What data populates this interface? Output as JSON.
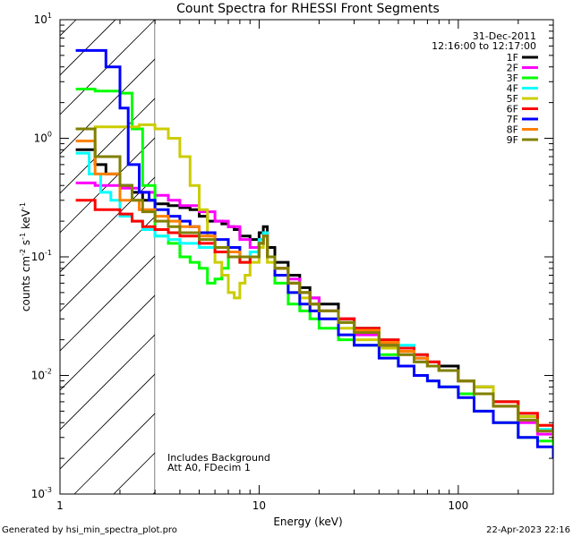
{
  "chart_data": {
    "type": "line",
    "title": "Count Spectra for RHESSI Front Segments",
    "xlabel": "Energy (keV)",
    "ylabel": "counts cm^-2 s^-1 keV^-1",
    "xscale": "log",
    "yscale": "log",
    "xlim": [
      1,
      300
    ],
    "ylim": [
      0.001,
      10
    ],
    "x_ticks": [
      1,
      10,
      100
    ],
    "x_tick_labels": [
      "1",
      "10",
      "100"
    ],
    "y_ticks": [
      0.001,
      0.01,
      0.1,
      1,
      10
    ],
    "y_tick_labels": [
      [
        "10",
        "-3"
      ],
      [
        "10",
        "-2"
      ],
      [
        "10",
        "-1"
      ],
      [
        "10",
        "0"
      ],
      [
        "10",
        "1"
      ]
    ],
    "shaded_region": {
      "x_min": 1,
      "x_max": 3,
      "pattern": "diagonal hatch"
    },
    "date": "31-Dec-2011",
    "time_range": "12:16:00 to 12:17:00",
    "annotations": [
      "Includes Background",
      "Att A0, FDecim 1"
    ],
    "series": [
      {
        "name": "1F",
        "color": "#000000",
        "x": [
          1.2,
          1.5,
          1.7,
          2,
          2.3,
          2.6,
          3,
          3.5,
          4,
          4.5,
          5,
          5.5,
          6,
          6.5,
          7,
          7.5,
          8,
          9,
          10,
          10.5,
          11,
          12,
          14,
          16,
          18,
          20,
          25,
          30,
          40,
          50,
          60,
          70,
          80,
          100,
          120,
          150,
          200,
          250,
          300
        ],
        "y": [
          0.8,
          0.6,
          0.5,
          0.4,
          0.35,
          0.3,
          0.28,
          0.27,
          0.26,
          0.25,
          0.22,
          0.2,
          0.2,
          0.19,
          0.18,
          0.17,
          0.15,
          0.14,
          0.16,
          0.18,
          0.12,
          0.09,
          0.07,
          0.055,
          0.045,
          0.04,
          0.03,
          0.025,
          0.018,
          0.016,
          0.014,
          0.013,
          0.012,
          0.009,
          0.008,
          0.006,
          0.0045,
          0.0035,
          0.003
        ]
      },
      {
        "name": "2F",
        "color": "#ff00ff",
        "x": [
          1.2,
          1.5,
          2,
          2.5,
          3,
          3.5,
          4,
          5,
          6,
          7,
          8,
          9,
          10,
          10.5,
          11,
          12,
          14,
          16,
          18,
          20,
          25,
          30,
          40,
          50,
          60,
          70,
          80,
          100,
          120,
          150,
          200,
          250,
          300
        ],
        "y": [
          0.42,
          0.4,
          0.38,
          0.35,
          0.33,
          0.3,
          0.27,
          0.24,
          0.2,
          0.18,
          0.14,
          0.12,
          0.14,
          0.16,
          0.1,
          0.08,
          0.065,
          0.05,
          0.045,
          0.035,
          0.03,
          0.022,
          0.018,
          0.015,
          0.013,
          0.012,
          0.011,
          0.009,
          0.007,
          0.0055,
          0.004,
          0.0032,
          0.0028
        ]
      },
      {
        "name": "3F",
        "color": "#00ff00",
        "x": [
          1.2,
          1.5,
          2,
          2.3,
          2.6,
          3,
          3.5,
          4,
          4.5,
          5,
          5.5,
          6,
          6.5,
          7,
          8,
          9,
          10,
          10.5,
          11,
          12,
          14,
          16,
          18,
          20,
          25,
          30,
          40,
          50,
          60,
          70,
          80,
          100,
          120,
          150,
          200,
          250,
          300
        ],
        "y": [
          2.6,
          2.5,
          2.4,
          1.2,
          0.4,
          0.15,
          0.13,
          0.1,
          0.09,
          0.08,
          0.06,
          0.065,
          0.08,
          0.1,
          0.09,
          0.1,
          0.13,
          0.15,
          0.1,
          0.06,
          0.04,
          0.035,
          0.03,
          0.025,
          0.02,
          0.018,
          0.015,
          0.012,
          0.01,
          0.009,
          0.008,
          0.007,
          0.005,
          0.004,
          0.003,
          0.0028,
          0.0025
        ]
      },
      {
        "name": "4F",
        "color": "#00ffff",
        "x": [
          1.2,
          1.4,
          1.6,
          1.8,
          2,
          2.3,
          2.6,
          3,
          3.5,
          4,
          5,
          6,
          7,
          8,
          9,
          10,
          10.5,
          11,
          12,
          14,
          16,
          18,
          20,
          25,
          30,
          40,
          50,
          60,
          70,
          80,
          100,
          120,
          150,
          200,
          250,
          300
        ],
        "y": [
          0.75,
          0.5,
          0.35,
          0.3,
          0.22,
          0.2,
          0.17,
          0.15,
          0.14,
          0.13,
          0.12,
          0.11,
          0.1,
          0.1,
          0.11,
          0.14,
          0.16,
          0.1,
          0.08,
          0.06,
          0.05,
          0.04,
          0.035,
          0.028,
          0.025,
          0.02,
          0.018,
          0.015,
          0.012,
          0.011,
          0.009,
          0.007,
          0.006,
          0.0045,
          0.0035,
          0.003
        ]
      },
      {
        "name": "5F",
        "color": "#cccc00",
        "x": [
          1.2,
          1.5,
          2,
          2.5,
          3,
          3.5,
          4,
          4.5,
          5,
          5.5,
          6,
          6.5,
          7,
          7.5,
          8,
          8.5,
          9,
          10,
          10.5,
          11,
          12,
          14,
          16,
          18,
          20,
          25,
          30,
          40,
          50,
          60,
          70,
          80,
          100,
          120,
          150,
          200,
          250,
          300
        ],
        "y": [
          1.2,
          1.25,
          1.25,
          1.3,
          1.2,
          1,
          0.7,
          0.4,
          0.25,
          0.15,
          0.09,
          0.07,
          0.05,
          0.045,
          0.06,
          0.07,
          0.09,
          0.12,
          0.15,
          0.09,
          0.07,
          0.05,
          0.045,
          0.035,
          0.03,
          0.025,
          0.02,
          0.017,
          0.015,
          0.013,
          0.012,
          0.011,
          0.009,
          0.008,
          0.006,
          0.0045,
          0.0038,
          0.0032
        ]
      },
      {
        "name": "6F",
        "color": "#ff0000",
        "x": [
          1.2,
          1.5,
          2,
          2.3,
          2.6,
          3,
          3.5,
          4,
          5,
          6,
          7,
          8,
          9,
          10,
          10.5,
          11,
          12,
          14,
          16,
          18,
          20,
          25,
          30,
          40,
          50,
          60,
          70,
          80,
          100,
          120,
          150,
          200,
          250,
          300
        ],
        "y": [
          0.3,
          0.25,
          0.23,
          0.2,
          0.18,
          0.17,
          0.16,
          0.15,
          0.13,
          0.11,
          0.1,
          0.09,
          0.1,
          0.13,
          0.15,
          0.1,
          0.08,
          0.06,
          0.05,
          0.04,
          0.035,
          0.03,
          0.025,
          0.02,
          0.017,
          0.015,
          0.013,
          0.011,
          0.009,
          0.007,
          0.006,
          0.0048,
          0.0038,
          0.0032
        ]
      },
      {
        "name": "7F",
        "color": "#0000ff",
        "x": [
          1.2,
          1.5,
          1.7,
          2,
          2.2,
          2.5,
          2.8,
          3,
          3.5,
          4,
          4.5,
          5,
          6,
          7,
          8,
          9,
          10,
          10.5,
          11,
          12,
          14,
          16,
          18,
          20,
          25,
          30,
          40,
          50,
          60,
          70,
          80,
          100,
          120,
          150,
          200,
          250,
          300
        ],
        "y": [
          5.5,
          5.5,
          4,
          1.8,
          0.6,
          0.35,
          0.3,
          0.25,
          0.22,
          0.2,
          0.18,
          0.16,
          0.14,
          0.12,
          0.1,
          0.1,
          0.13,
          0.15,
          0.1,
          0.07,
          0.05,
          0.04,
          0.035,
          0.03,
          0.022,
          0.018,
          0.014,
          0.012,
          0.01,
          0.009,
          0.008,
          0.0065,
          0.005,
          0.004,
          0.003,
          0.0025,
          0.002
        ]
      },
      {
        "name": "8F",
        "color": "#ff8000",
        "x": [
          1.2,
          1.5,
          2,
          2.5,
          3,
          3.5,
          4,
          5,
          6,
          7,
          8,
          9,
          10,
          10.5,
          11,
          12,
          14,
          16,
          18,
          20,
          25,
          30,
          40,
          50,
          60,
          70,
          80,
          100,
          120,
          150,
          200,
          250,
          300
        ],
        "y": [
          0.95,
          0.5,
          0.3,
          0.25,
          0.22,
          0.2,
          0.18,
          0.15,
          0.12,
          0.11,
          0.1,
          0.1,
          0.13,
          0.15,
          0.1,
          0.08,
          0.06,
          0.05,
          0.04,
          0.035,
          0.028,
          0.024,
          0.019,
          0.016,
          0.014,
          0.012,
          0.011,
          0.009,
          0.007,
          0.0055,
          0.0042,
          0.0034,
          0.0028
        ]
      },
      {
        "name": "9F",
        "color": "#808000",
        "x": [
          1.2,
          1.5,
          2,
          2.3,
          2.6,
          3,
          3.5,
          4,
          5,
          6,
          7,
          8,
          9,
          10,
          10.5,
          11,
          12,
          14,
          16,
          18,
          20,
          25,
          30,
          40,
          50,
          60,
          70,
          80,
          100,
          120,
          150,
          200,
          250,
          300
        ],
        "y": [
          1.2,
          0.7,
          0.4,
          0.3,
          0.24,
          0.2,
          0.18,
          0.16,
          0.14,
          0.12,
          0.1,
          0.1,
          0.1,
          0.13,
          0.15,
          0.1,
          0.08,
          0.06,
          0.05,
          0.04,
          0.035,
          0.028,
          0.023,
          0.018,
          0.015,
          0.013,
          0.012,
          0.011,
          0.009,
          0.007,
          0.0055,
          0.0042,
          0.0034,
          0.0028
        ]
      }
    ]
  },
  "footer": {
    "generated_by": "Generated by hsi_min_spectra_plot.pro",
    "timestamp": "22-Apr-2023 22:16"
  }
}
